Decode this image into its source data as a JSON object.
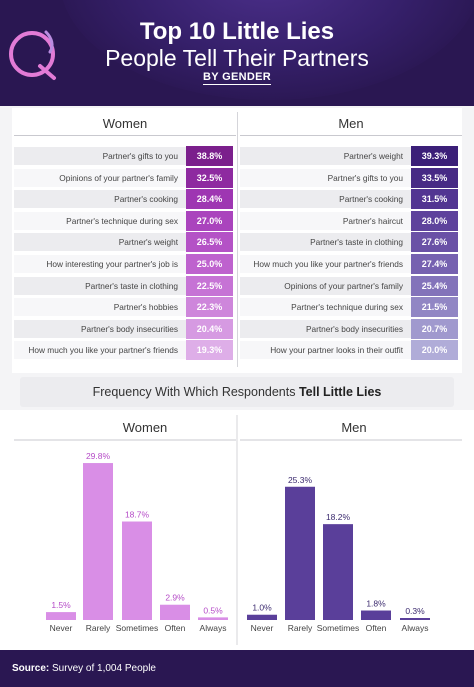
{
  "header": {
    "title_line1": "Top 10 Little Lies",
    "title_line2": "People Tell Their Partners",
    "subtitle": "BY GENDER"
  },
  "lies": {
    "women_heading": "Women",
    "men_heading": "Men",
    "women": [
      {
        "label": "Partner's gifts to you",
        "value": "38.8%",
        "color": "#7b1f8c"
      },
      {
        "label": "Opinions of your partner's family",
        "value": "32.5%",
        "color": "#8e2aa0"
      },
      {
        "label": "Partner's cooking",
        "value": "28.4%",
        "color": "#9e36b2"
      },
      {
        "label": "Partner's technique during sex",
        "value": "27.0%",
        "color": "#aa44bd"
      },
      {
        "label": "Partner's weight",
        "value": "26.5%",
        "color": "#b452c6"
      },
      {
        "label": "How interesting your partner's job is",
        "value": "25.0%",
        "color": "#be62ce"
      },
      {
        "label": "Partner's taste in clothing",
        "value": "22.5%",
        "color": "#c673d5"
      },
      {
        "label": "Partner's hobbies",
        "value": "22.3%",
        "color": "#ce86db"
      },
      {
        "label": "Partner's body insecurities",
        "value": "20.4%",
        "color": "#d69ae2"
      },
      {
        "label": "How much you like your partner's friends",
        "value": "19.3%",
        "color": "#deaee8"
      }
    ],
    "men": [
      {
        "label": "Partner's weight",
        "value": "39.3%",
        "color": "#3b1f78"
      },
      {
        "label": "Partner's gifts to you",
        "value": "33.5%",
        "color": "#472a85"
      },
      {
        "label": "Partner's cooking",
        "value": "31.5%",
        "color": "#523592"
      },
      {
        "label": "Partner's haircut",
        "value": "28.0%",
        "color": "#5e429c"
      },
      {
        "label": "Partner's taste in clothing",
        "value": "27.6%",
        "color": "#6a51a6"
      },
      {
        "label": "How much you like your partner's friends",
        "value": "27.4%",
        "color": "#7661b0"
      },
      {
        "label": "Opinions of your partner's family",
        "value": "25.4%",
        "color": "#8373ba"
      },
      {
        "label": "Partner's technique during sex",
        "value": "21.5%",
        "color": "#9186c4"
      },
      {
        "label": "Partner's body insecurities",
        "value": "20.7%",
        "color": "#a099ce"
      },
      {
        "label": "How your partner looks in their outfit",
        "value": "20.0%",
        "color": "#b0acd8"
      }
    ]
  },
  "frequency": {
    "title_prefix": "Frequency With Which Respondents ",
    "title_bold": "Tell Little Lies"
  },
  "chart_data": [
    {
      "type": "bar",
      "title": "Women",
      "categories": [
        "Never",
        "Rarely",
        "Sometimes",
        "Often",
        "Always"
      ],
      "values": [
        1.5,
        29.8,
        18.7,
        2.9,
        0.5
      ],
      "value_labels": [
        "1.5%",
        "29.8%",
        "18.7%",
        "2.9%",
        "0.5%"
      ],
      "bar_color": "#d98ee6",
      "label_color": "#b54bc7",
      "ylim": [
        0,
        30
      ]
    },
    {
      "type": "bar",
      "title": "Men",
      "categories": [
        "Never",
        "Rarely",
        "Sometimes",
        "Often",
        "Always"
      ],
      "values": [
        1.0,
        25.3,
        18.2,
        1.8,
        0.3
      ],
      "value_labels": [
        "1.0%",
        "25.3%",
        "18.2%",
        "1.8%",
        "0.3%"
      ],
      "bar_color": "#5a3f9a",
      "label_color": "#3b2a6e",
      "ylim": [
        0,
        30
      ]
    }
  ],
  "footer": {
    "source_label": "Source:",
    "source_text": " Survey of 1,004 People"
  }
}
